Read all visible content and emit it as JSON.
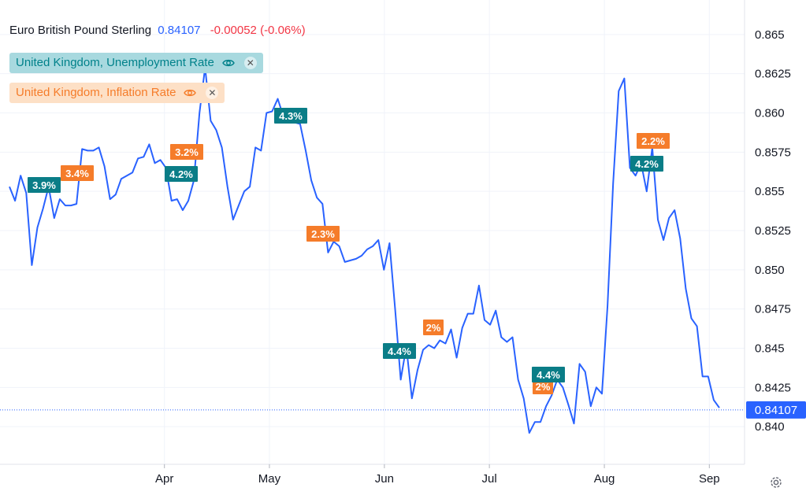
{
  "legend": {
    "symbol_name": "Euro British Pound Sterling",
    "last_price": "0.84107",
    "change": "-0.00052 (-0.06%)"
  },
  "studies": [
    {
      "label": "United Kingdom, Unemployment Rate",
      "color": "#00818a",
      "bg": "#a8d9df",
      "icons": [
        "eye-icon",
        "close-icon"
      ]
    },
    {
      "label": "United Kingdom, Inflation Rate",
      "color": "#f57c2a",
      "bg": "#fde0c6",
      "icons": [
        "eye-icon",
        "close-icon"
      ]
    }
  ],
  "price_tag": "0.84107",
  "settings_icon": "gear-icon",
  "chart_data": {
    "type": "line",
    "series": [
      {
        "name": "Euro British Pound Sterling",
        "color": "#2962ff",
        "values": [
          0.8553,
          0.8544,
          0.856,
          0.8549,
          0.8503,
          0.8527,
          0.8539,
          0.8553,
          0.8533,
          0.8545,
          0.8541,
          0.8541,
          0.8542,
          0.8577,
          0.8576,
          0.8576,
          0.8578,
          0.8566,
          0.8545,
          0.8548,
          0.8558,
          0.856,
          0.8562,
          0.8571,
          0.8572,
          0.858,
          0.8568,
          0.857,
          0.8565,
          0.8544,
          0.8545,
          0.8538,
          0.8544,
          0.8557,
          0.86,
          0.8629,
          0.8595,
          0.8589,
          0.8578,
          0.8553,
          0.8532,
          0.8541,
          0.855,
          0.8553,
          0.8578,
          0.8576,
          0.86,
          0.8601,
          0.8609,
          0.8598,
          0.8597,
          0.8594,
          0.8593,
          0.8576,
          0.8557,
          0.8546,
          0.8542,
          0.8511,
          0.8518,
          0.8515,
          0.8505,
          0.8506,
          0.8507,
          0.8509,
          0.8513,
          0.8515,
          0.8519,
          0.85,
          0.8517,
          0.8475,
          0.843,
          0.8451,
          0.8418,
          0.8436,
          0.8449,
          0.8452,
          0.845,
          0.8455,
          0.8453,
          0.8462,
          0.8444,
          0.8463,
          0.8472,
          0.8472,
          0.849,
          0.8468,
          0.8465,
          0.8474,
          0.8457,
          0.8454,
          0.8457,
          0.843,
          0.8418,
          0.8396,
          0.8403,
          0.8403,
          0.8413,
          0.842,
          0.843,
          0.8425,
          0.8414,
          0.8402,
          0.844,
          0.8435,
          0.8413,
          0.8425,
          0.8421,
          0.8477,
          0.8555,
          0.8614,
          0.8622,
          0.8565,
          0.856,
          0.8568,
          0.855,
          0.8578,
          0.8532,
          0.8519,
          0.8533,
          0.8538,
          0.852,
          0.8488,
          0.8469,
          0.8464,
          0.8432,
          0.8432,
          0.8417,
          0.8412
        ]
      }
    ],
    "event_markers": [
      {
        "text": "3.9%",
        "series": "United Kingdom, Unemployment Rate",
        "date": "Mar 7"
      },
      {
        "text": "3.4%",
        "series": "United Kingdom, Inflation Rate",
        "date": "Mar 13"
      },
      {
        "text": "3.2%",
        "series": "United Kingdom, Inflation Rate",
        "date": "Apr 17"
      },
      {
        "text": "4.2%",
        "series": "United Kingdom, Unemployment Rate",
        "date": "Apr 16"
      },
      {
        "text": "4.3%",
        "series": "United Kingdom, Unemployment Rate",
        "date": "May 14"
      },
      {
        "text": "2.3%",
        "series": "United Kingdom, Inflation Rate",
        "date": "May 22"
      },
      {
        "text": "4.4%",
        "series": "United Kingdom, Unemployment Rate",
        "date": "Jun 11"
      },
      {
        "text": "2%",
        "series": "United Kingdom, Inflation Rate",
        "date": "Jun 19"
      },
      {
        "text": "2%",
        "series": "United Kingdom, Inflation Rate",
        "date": "Jul 17"
      },
      {
        "text": "4.4%",
        "series": "United Kingdom, Unemployment Rate",
        "date": "Jul 16"
      },
      {
        "text": "2.2%",
        "series": "United Kingdom, Inflation Rate",
        "date": "Aug 14"
      },
      {
        "text": "4.2%",
        "series": "United Kingdom, Unemployment Rate",
        "date": "Aug 13"
      }
    ],
    "x_ticks": [
      "Apr",
      "May",
      "Jun",
      "Jul",
      "Aug",
      "Sep"
    ],
    "y_ticks": [
      "0.865",
      "0.8625",
      "0.860",
      "0.8575",
      "0.855",
      "0.8525",
      "0.850",
      "0.8475",
      "0.845",
      "0.8425",
      "0.840"
    ],
    "ylim": [
      0.8376,
      0.8672
    ],
    "grid": true,
    "axis_position": "right",
    "last_value_line": 0.84107
  }
}
